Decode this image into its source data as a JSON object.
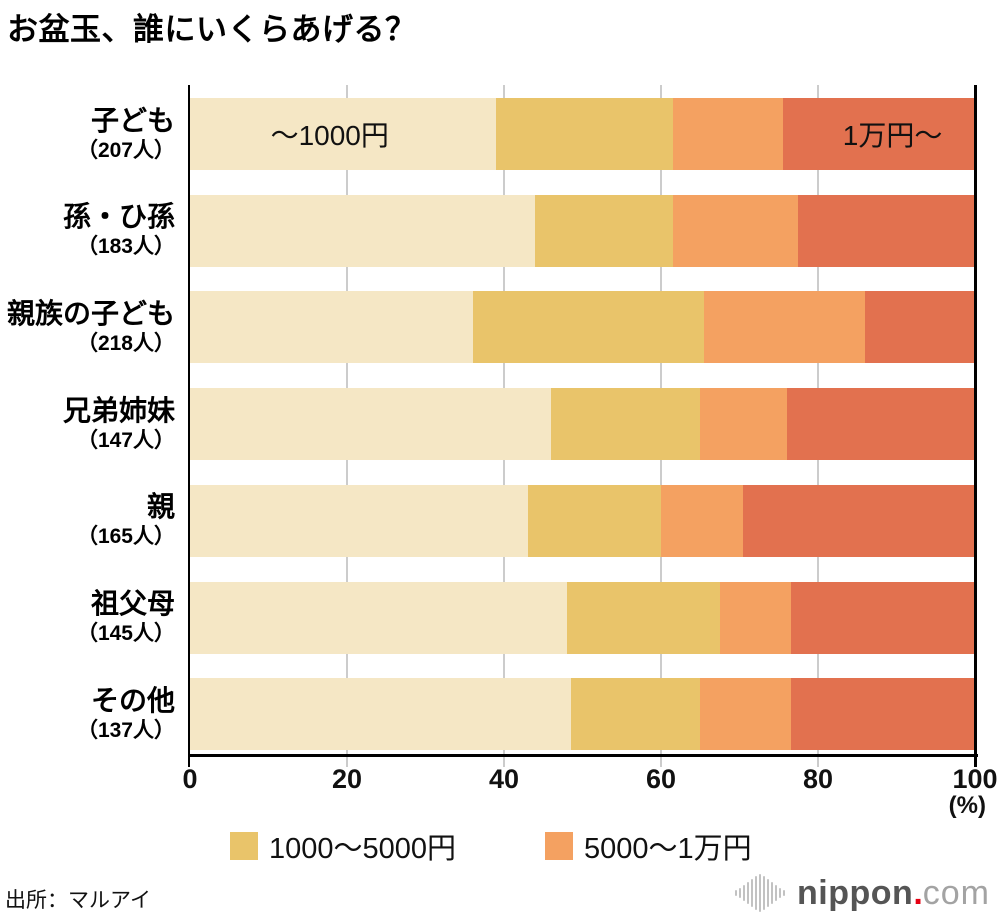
{
  "title": "お盆玉、誰にいくらあげる？",
  "source": "出所：マルアイ",
  "logo": {
    "icon": "soundwave-bars-icon",
    "main": "nippon",
    "dot": ".",
    "tld": "com"
  },
  "chart_data": {
    "type": "bar",
    "orientation": "horizontal",
    "stacked": true,
    "title": "お盆玉、誰にいくらあげる？",
    "unit": "%",
    "categories": [
      {
        "label": "子ども",
        "count": "（207人）"
      },
      {
        "label": "孫・ひ孫",
        "count": "（183人）"
      },
      {
        "label": "親族の子ども",
        "count": "（218人）"
      },
      {
        "label": "兄弟姉妹",
        "count": "（147人）"
      },
      {
        "label": "親",
        "count": "（165人）"
      },
      {
        "label": "祖父母",
        "count": "（145人）"
      },
      {
        "label": "その他",
        "count": "（137人）"
      }
    ],
    "series": [
      {
        "name": "～1000円",
        "color": "#F5E7C5",
        "values": [
          39,
          44,
          36,
          46,
          43,
          48,
          48.5
        ]
      },
      {
        "name": "1000～5000円",
        "color": "#E9C46A",
        "values": [
          22.5,
          17.5,
          29.5,
          19,
          17,
          19.5,
          16.5
        ]
      },
      {
        "name": "5000～1万円",
        "color": "#F4A161",
        "values": [
          14,
          16,
          20.5,
          11,
          10.5,
          9,
          11.5
        ]
      },
      {
        "name": "1万円～",
        "color": "#E2714F",
        "values": [
          24.5,
          22.5,
          14,
          24,
          29.5,
          23.5,
          23.5
        ]
      }
    ],
    "in_bar_labels": [
      {
        "row": 0,
        "series": 0,
        "text": "～1000円",
        "center_pct": 17.8
      },
      {
        "row": 0,
        "series": 3,
        "text": "1万円～",
        "center_pct": 89.5
      }
    ],
    "x_axis": {
      "min": 0,
      "max": 100,
      "ticks": [
        "0",
        "20",
        "40",
        "60",
        "80",
        "100"
      ],
      "unit": "(%)"
    },
    "legend": [
      {
        "label": "1000～5000円",
        "color": "#E9C46A"
      },
      {
        "label": "5000～1万円",
        "color": "#F4A161"
      }
    ],
    "grid": {
      "show": true,
      "color": "#cccccc",
      "positions_pct": [
        20,
        40,
        60,
        80
      ]
    }
  }
}
